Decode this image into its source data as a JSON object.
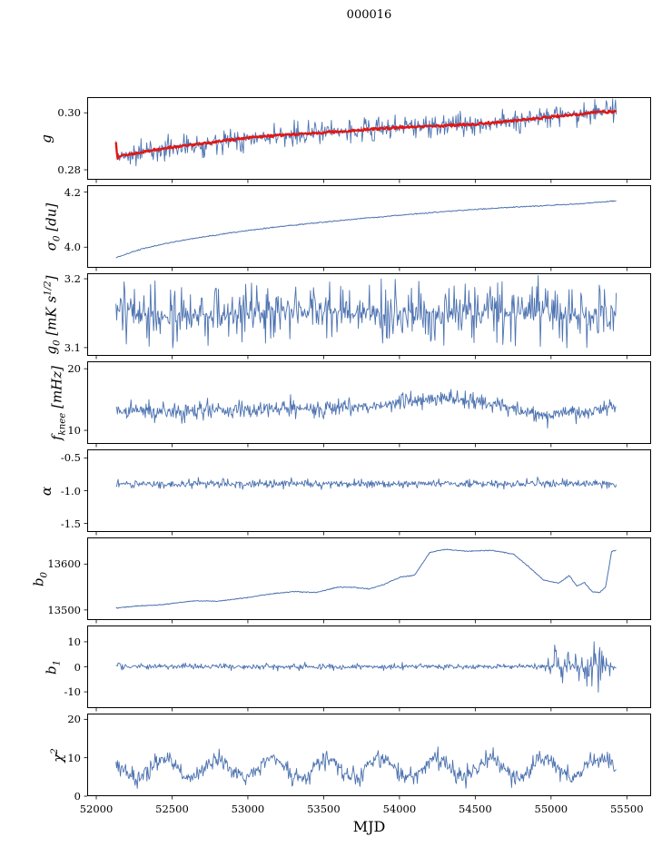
{
  "figure": {
    "title": "000016",
    "xlabel": "MJD"
  },
  "chart_data": {
    "type": "line",
    "title": "000016",
    "xlabel": "MJD",
    "xlim": [
      51940,
      55660
    ],
    "xticks": [
      52000,
      52500,
      53000,
      53500,
      54000,
      54500,
      55000,
      55500
    ],
    "x_range": [
      52130,
      55430
    ],
    "legend": "none",
    "grid": false,
    "colors": {
      "line": "#4c72b0",
      "overlay": "#e01717",
      "axis": "#000000"
    },
    "panels": [
      {
        "name": "g",
        "ylabel": "g",
        "ylim": [
          0.2765,
          0.3055
        ],
        "yticks": [
          0.28,
          0.3
        ],
        "ytick_labels": [
          "0.28",
          "0.30"
        ],
        "series": [
          {
            "name": "g-raw",
            "color": "#4c72b0",
            "width": 0.9,
            "points": 700,
            "noise": 0.0013,
            "spike_noise": 0.0045,
            "seed": 11,
            "keypoints": [
              [
                52125,
                0.2936
              ],
              [
                52138,
                0.2842
              ],
              [
                52180,
                0.2852
              ],
              [
                52300,
                0.2862
              ],
              [
                52500,
                0.288
              ],
              [
                52750,
                0.2895
              ],
              [
                53000,
                0.2913
              ],
              [
                53250,
                0.2923
              ],
              [
                53500,
                0.293
              ],
              [
                53750,
                0.294
              ],
              [
                54000,
                0.2949
              ],
              [
                54250,
                0.2954
              ],
              [
                54500,
                0.296
              ],
              [
                54750,
                0.2972
              ],
              [
                55000,
                0.2986
              ],
              [
                55150,
                0.2993
              ],
              [
                55300,
                0.3003
              ],
              [
                55430,
                0.3004
              ]
            ]
          },
          {
            "name": "g-smoothed",
            "color": "#e01717",
            "width": 2.4,
            "points": 600,
            "noise": 0.0005,
            "seed": 12,
            "keypoints": [
              [
                52125,
                0.2936
              ],
              [
                52138,
                0.2842
              ],
              [
                52180,
                0.2852
              ],
              [
                52300,
                0.2862
              ],
              [
                52500,
                0.288
              ],
              [
                52750,
                0.2895
              ],
              [
                53000,
                0.2913
              ],
              [
                53250,
                0.2923
              ],
              [
                53500,
                0.293
              ],
              [
                53750,
                0.294
              ],
              [
                54000,
                0.2949
              ],
              [
                54250,
                0.2954
              ],
              [
                54500,
                0.296
              ],
              [
                54750,
                0.2972
              ],
              [
                55000,
                0.2986
              ],
              [
                55150,
                0.2993
              ],
              [
                55300,
                0.3003
              ],
              [
                55430,
                0.3004
              ]
            ]
          }
        ]
      },
      {
        "name": "sigma0",
        "ylabel": "σ_{0} [du]",
        "ylim": [
          3.925,
          4.225
        ],
        "yticks": [
          4.0,
          4.2
        ],
        "ytick_labels": [
          "4.0",
          "4.2"
        ],
        "series": [
          {
            "name": "sigma0",
            "color": "#4c72b0",
            "width": 1.0,
            "points": 600,
            "noise": 0.0025,
            "seed": 21,
            "keypoints": [
              [
                52130,
                3.962
              ],
              [
                52300,
                3.994
              ],
              [
                52500,
                4.018
              ],
              [
                52750,
                4.041
              ],
              [
                53000,
                4.061
              ],
              [
                53250,
                4.077
              ],
              [
                53500,
                4.091
              ],
              [
                53750,
                4.104
              ],
              [
                54000,
                4.116
              ],
              [
                54250,
                4.127
              ],
              [
                54500,
                4.137
              ],
              [
                54750,
                4.145
              ],
              [
                55000,
                4.152
              ],
              [
                55200,
                4.158
              ],
              [
                55430,
                4.168
              ]
            ]
          }
        ]
      },
      {
        "name": "g0",
        "ylabel": "g_{0} [mK s^{1/2}]",
        "ylim": [
          3.088,
          3.208
        ],
        "yticks": [
          3.1,
          3.2
        ],
        "ytick_labels": [
          "3.1",
          "3.2"
        ],
        "series": [
          {
            "name": "g0",
            "color": "#4c72b0",
            "width": 0.9,
            "points": 680,
            "noise": 0.016,
            "spike_noise": 0.045,
            "seed": 31,
            "keypoints": [
              [
                52130,
                3.15
              ],
              [
                52800,
                3.147
              ],
              [
                53500,
                3.152
              ],
              [
                54200,
                3.148
              ],
              [
                54900,
                3.15
              ],
              [
                55430,
                3.149
              ]
            ]
          }
        ]
      },
      {
        "name": "fknee",
        "ylabel": "f_{knee} [mHz]",
        "ylim": [
          7.8,
          21.2
        ],
        "yticks": [
          10,
          20
        ],
        "ytick_labels": [
          "10",
          "20"
        ],
        "series": [
          {
            "name": "fknee",
            "color": "#4c72b0",
            "width": 0.9,
            "points": 700,
            "noise": 1.1,
            "spike_noise": 1.5,
            "seed": 41,
            "keypoints": [
              [
                52130,
                13.3
              ],
              [
                52400,
                13.0
              ],
              [
                52800,
                13.2
              ],
              [
                53200,
                13.4
              ],
              [
                53600,
                13.6
              ],
              [
                53900,
                14.1
              ],
              [
                54150,
                15.2
              ],
              [
                54400,
                15.0
              ],
              [
                54600,
                14.4
              ],
              [
                54800,
                13.2
              ],
              [
                54950,
                12.4
              ],
              [
                55100,
                12.8
              ],
              [
                55250,
                13.2
              ],
              [
                55430,
                13.9
              ]
            ]
          }
        ]
      },
      {
        "name": "alpha",
        "ylabel": "α",
        "ylim": [
          -1.63,
          -0.37
        ],
        "yticks": [
          -1.5,
          -1.0,
          -0.5
        ],
        "ytick_labels": [
          "-1.5",
          "-1.0",
          "-0.5"
        ],
        "series": [
          {
            "name": "alpha",
            "color": "#4c72b0",
            "width": 0.9,
            "points": 700,
            "noise": 0.05,
            "spike_noise": 0.06,
            "seed": 51,
            "keypoints": [
              [
                52130,
                -0.895
              ],
              [
                55430,
                -0.895
              ]
            ]
          }
        ]
      },
      {
        "name": "b0",
        "ylabel": "b_{0}",
        "ylim": [
          13478,
          13658
        ],
        "yticks": [
          13500,
          13600
        ],
        "ytick_labels": [
          "13500",
          "13600"
        ],
        "series": [
          {
            "name": "b0",
            "color": "#4c72b0",
            "width": 1.0,
            "points": 650,
            "noise": 1.2,
            "seed": 61,
            "keypoints": [
              [
                52130,
                13504
              ],
              [
                52250,
                13508
              ],
              [
                52450,
                13512
              ],
              [
                52650,
                13520
              ],
              [
                52800,
                13519
              ],
              [
                53000,
                13527
              ],
              [
                53150,
                13535
              ],
              [
                53300,
                13540
              ],
              [
                53450,
                13538
              ],
              [
                53600,
                13550
              ],
              [
                53700,
                13549
              ],
              [
                53800,
                13546
              ],
              [
                53900,
                13556
              ],
              [
                54000,
                13571
              ],
              [
                54100,
                13576
              ],
              [
                54200,
                13625
              ],
              [
                54300,
                13632
              ],
              [
                54450,
                13628
              ],
              [
                54600,
                13630
              ],
              [
                54750,
                13622
              ],
              [
                54850,
                13595
              ],
              [
                54950,
                13565
              ],
              [
                55050,
                13558
              ],
              [
                55120,
                13575
              ],
              [
                55170,
                13552
              ],
              [
                55220,
                13560
              ],
              [
                55270,
                13540
              ],
              [
                55320,
                13538
              ],
              [
                55360,
                13550
              ],
              [
                55400,
                13628
              ],
              [
                55430,
                13630
              ]
            ]
          }
        ]
      },
      {
        "name": "b1",
        "ylabel": "b_{1}",
        "ylim": [
          -16.5,
          16.5
        ],
        "yticks": [
          -10,
          0,
          10
        ],
        "ytick_labels": [
          "-10",
          "0",
          "10"
        ],
        "series": [
          {
            "name": "b1",
            "color": "#4c72b0",
            "width": 0.9,
            "points": 700,
            "seed": 71,
            "noise_keypoints": [
              [
                52130,
                2.2
              ],
              [
                52220,
                0.9
              ],
              [
                55430,
                0.9
              ]
            ],
            "spike_keypoints": [
              [
                52130,
                2
              ],
              [
                52250,
                1
              ],
              [
                54950,
                1
              ],
              [
                55040,
                10
              ],
              [
                55100,
                14
              ],
              [
                55200,
                8
              ],
              [
                55300,
                13
              ],
              [
                55380,
                5
              ],
              [
                55430,
                3
              ]
            ],
            "keypoints": [
              [
                52130,
                0.8
              ],
              [
                52200,
                0.1
              ],
              [
                55430,
                0.1
              ]
            ]
          }
        ]
      },
      {
        "name": "chi2",
        "ylabel": "χ^{2}",
        "ylim": [
          0,
          21.5
        ],
        "yticks": [
          0,
          10,
          20
        ],
        "ytick_labels": [
          "0",
          "10",
          "20"
        ],
        "series": [
          {
            "name": "chi2",
            "color": "#4c72b0",
            "width": 0.9,
            "points": 680,
            "noise": 1.5,
            "spike_noise": 2.5,
            "seed": 81,
            "osc": {
              "amp": 2.4,
              "period": 360,
              "phase": 52350
            },
            "keypoints": [
              [
                52130,
                7.2
              ],
              [
                55430,
                7.4
              ]
            ]
          }
        ]
      }
    ]
  }
}
